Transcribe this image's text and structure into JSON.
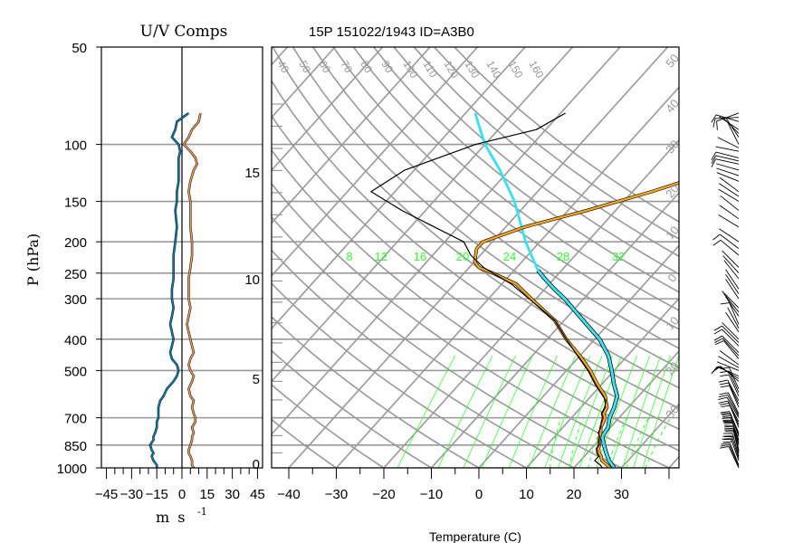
{
  "colors": {
    "grid": "#999999",
    "frame": "#000000",
    "temperature": "#f5a623",
    "dewpoint": "#000000",
    "parcel": "#40e0f0",
    "mixing": "#33ff33",
    "u_comp": "#f5a623",
    "v_comp": "#008b8b"
  },
  "chart_data": [
    {
      "type": "line",
      "name": "uv-profile",
      "title": "U/V Comps",
      "ylabel": "P (hPa)",
      "xlabel": "m s",
      "xlabel_exponent": "-1",
      "xlim": [
        -48,
        48
      ],
      "ylim": [
        1000,
        50
      ],
      "y_scale": "log",
      "x_ticks": [
        -45,
        -30,
        -15,
        0,
        15,
        30,
        45
      ],
      "x_tick_labels": [
        "−45",
        "−30",
        "−15",
        "0",
        "15",
        "30",
        "45"
      ],
      "y_ticks": [
        1000,
        850,
        700,
        500,
        400,
        300,
        250,
        200,
        150,
        100,
        50
      ],
      "y_tick_labels": [
        "1000",
        "850",
        "700",
        "500",
        "400",
        "300",
        "250",
        "200",
        "150",
        "100",
        "50"
      ],
      "series": [
        {
          "key": "u",
          "p": [
            1000,
            980,
            950,
            920,
            900,
            880,
            850,
            820,
            800,
            780,
            750,
            720,
            700,
            680,
            650,
            620,
            600,
            570,
            540,
            520,
            500,
            480,
            460,
            440,
            420,
            400,
            380,
            360,
            340,
            320,
            300,
            280,
            260,
            240,
            220,
            200,
            180,
            160,
            150,
            140,
            130,
            120,
            115,
            110,
            105,
            100,
            95,
            90,
            85,
            80
          ],
          "values": [
            7,
            6,
            6,
            5,
            4,
            4,
            5,
            6,
            6,
            7,
            6,
            8,
            8,
            7,
            6,
            7,
            5,
            4,
            6,
            7,
            5,
            4,
            5,
            7,
            6,
            5,
            4,
            3,
            4,
            5,
            4,
            4,
            4,
            5,
            6,
            6,
            5,
            5,
            5,
            4,
            5,
            7,
            9,
            8,
            5,
            1,
            4,
            6,
            10,
            11
          ]
        },
        {
          "key": "v",
          "p": [
            1000,
            980,
            950,
            920,
            900,
            880,
            850,
            820,
            800,
            780,
            750,
            720,
            700,
            680,
            650,
            620,
            600,
            570,
            540,
            520,
            500,
            480,
            460,
            440,
            420,
            400,
            380,
            360,
            340,
            320,
            300,
            280,
            260,
            240,
            220,
            200,
            180,
            160,
            150,
            140,
            130,
            120,
            115,
            110,
            105,
            100,
            95,
            90,
            85,
            80
          ],
          "values": [
            -15,
            -15,
            -17,
            -18,
            -17,
            -18,
            -19,
            -17,
            -17,
            -16,
            -15,
            -15,
            -14,
            -14,
            -14,
            -13,
            -11,
            -9,
            -5,
            -3,
            -2,
            -3,
            -6,
            -7,
            -6,
            -5,
            -6,
            -7,
            -6,
            -5,
            -6,
            -6,
            -5,
            -5,
            -5,
            -4,
            -3,
            -4,
            -3,
            -3,
            -2,
            -2,
            -2,
            -2,
            -1,
            -2,
            -6,
            -4,
            -3,
            4
          ]
        }
      ]
    },
    {
      "type": "line",
      "name": "skew-t",
      "title": "15P 151022/1943 ID=A3B0",
      "xlabel": "Temperature (C)",
      "xlim": [
        -42,
        40
      ],
      "ylim": [
        1000,
        50
      ],
      "x_ticks": [
        -40,
        -30,
        -20,
        -10,
        0,
        10,
        20,
        30
      ],
      "x_tick_labels": [
        "−40",
        "−30",
        "−20",
        "−10",
        "0",
        "10",
        "20",
        "30"
      ],
      "height_ticks_km": [
        0,
        5,
        10,
        15
      ],
      "height_tick_labels": [
        "0",
        "5",
        "10",
        "15"
      ],
      "mixing_ratio_labels": [
        "8",
        "12",
        "16",
        "20",
        "24",
        "28",
        "32"
      ],
      "isotherm_labels": [
        "40",
        "50",
        "60",
        "70",
        "80",
        "90",
        "100",
        "110",
        "120",
        "130",
        "140",
        "150",
        "160"
      ],
      "right_labels": [
        "50",
        "40",
        "30",
        "20",
        "10",
        "0",
        "10",
        "20",
        "30"
      ],
      "temperature": {
        "p": [
          1000,
          980,
          950,
          920,
          900,
          870,
          850,
          820,
          800,
          780,
          750,
          720,
          700,
          680,
          650,
          620,
          600,
          550,
          500,
          450,
          400,
          350,
          300,
          270,
          250,
          240,
          230,
          210,
          200,
          180,
          160,
          140,
          120,
          110,
          100,
          90,
          80
        ],
        "t": [
          27.5,
          26.5,
          24.5,
          23.5,
          22.5,
          21.5,
          21,
          20,
          19.5,
          19,
          18,
          17.5,
          17,
          16,
          15.5,
          14,
          13,
          9,
          5,
          0,
          -6,
          -12,
          -21,
          -27,
          -34,
          -38,
          -40,
          -42,
          -42,
          -36,
          -26,
          -16,
          -6,
          -3,
          0,
          -3,
          -5
        ]
      },
      "dewpoint": {
        "p": [
          1000,
          980,
          950,
          920,
          900,
          870,
          850,
          820,
          800,
          780,
          750,
          720,
          700,
          680,
          650,
          620,
          600,
          550,
          500,
          450,
          400,
          350,
          300,
          270,
          250,
          240,
          220,
          200,
          180,
          160,
          140,
          120,
          100,
          90,
          80
        ],
        "t": [
          26,
          25,
          23,
          23,
          22,
          21,
          21,
          20,
          19.5,
          18.5,
          18,
          17,
          16.5,
          15.5,
          15,
          14,
          12.5,
          8.5,
          4.5,
          -0.5,
          -6,
          -12,
          -21.5,
          -28,
          -34,
          -37,
          -42,
          -46,
          -55,
          -65,
          -75,
          -72,
          -62,
          -52,
          -49
        ]
      },
      "parcel": {
        "p": [
          1000,
          950,
          900,
          850,
          800,
          750,
          700,
          650,
          600,
          550,
          500,
          450,
          400,
          350,
          300,
          280,
          260,
          245
        ],
        "t": [
          28.5,
          26,
          24,
          22,
          20,
          19.5,
          18,
          17,
          15.5,
          12.5,
          9.5,
          6,
          1,
          -6,
          -14,
          -18,
          -22,
          -25
        ]
      },
      "moist_adiabat": {
        "p": [
          245,
          200,
          150,
          120,
          100,
          80
        ],
        "t": [
          -25,
          -33,
          -43,
          -52,
          -60,
          -68
        ]
      }
    }
  ]
}
